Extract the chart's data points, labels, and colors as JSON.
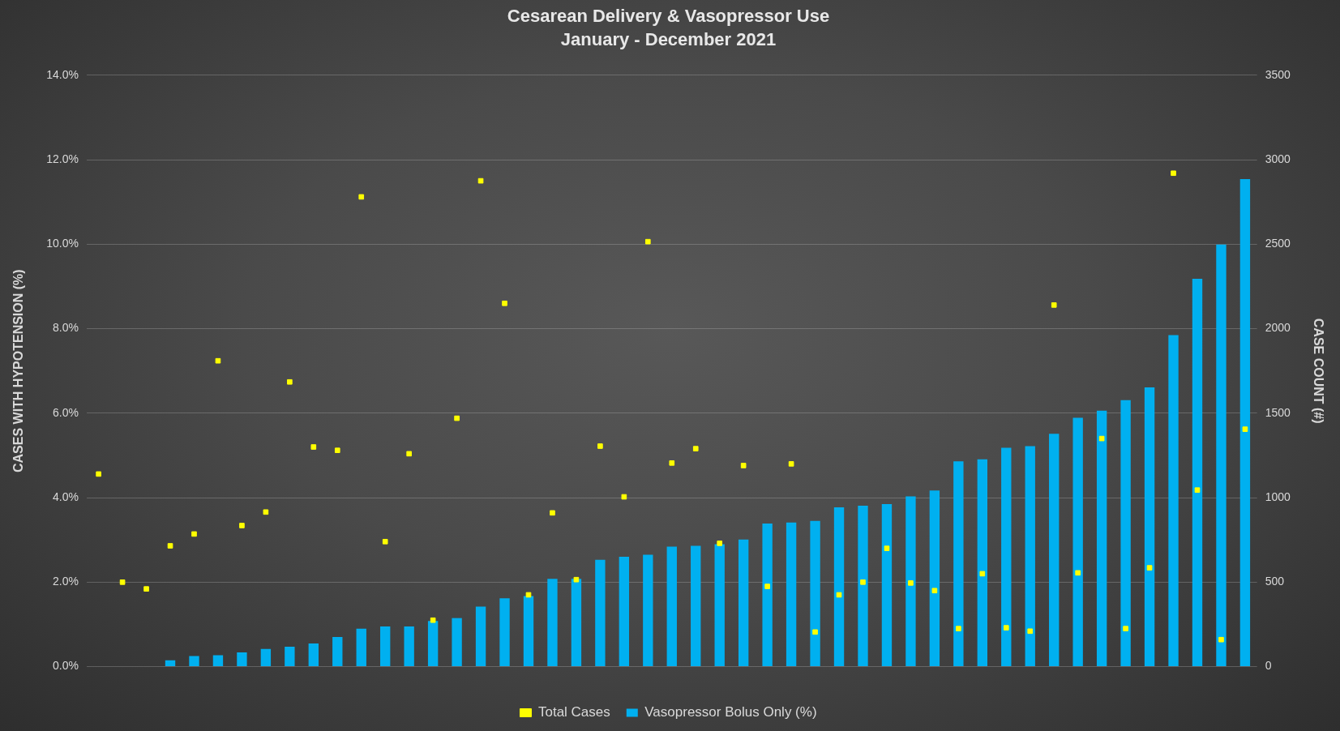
{
  "chart_data": {
    "type": "bar",
    "title": "Cesarean Delivery & Vasopressor Use",
    "subtitle": "January - December 2021",
    "ylabel": "CASES WITH HYPOTENSION (%)",
    "y2label": "CASE COUNT (#)",
    "categories": [
      null,
      null,
      null,
      null,
      null,
      null,
      null,
      null,
      null,
      null,
      null,
      null,
      null,
      null,
      null,
      null,
      null,
      null,
      null,
      null,
      null,
      null,
      null,
      null,
      null,
      null,
      null,
      null,
      null,
      null,
      null,
      null,
      null,
      null,
      null,
      null,
      null,
      null,
      null,
      null,
      null,
      null,
      null,
      null,
      null,
      null,
      null,
      null,
      null
    ],
    "series": [
      {
        "name": "Vasopressor Bolus Only (%)",
        "color": "#00b0f0",
        "values": [
          null,
          null,
          null,
          0.15,
          0.25,
          0.27,
          0.34,
          0.42,
          0.47,
          0.55,
          0.7,
          0.9,
          0.95,
          0.95,
          1.08,
          1.15,
          1.42,
          1.62,
          1.67,
          2.08,
          2.08,
          2.53,
          2.6,
          2.65,
          2.84,
          2.86,
          2.9,
          3.01,
          3.39,
          3.41,
          3.45,
          3.77,
          3.81,
          3.85,
          4.03,
          4.17,
          4.86,
          4.91,
          5.18,
          5.22,
          5.51,
          5.89,
          6.06,
          6.31,
          6.61,
          7.85,
          9.18,
          9.99,
          11.54
        ]
      },
      {
        "name": "Total Cases",
        "type": "scatter",
        "axis": "y2",
        "marker": "square",
        "color": "#ffff00",
        "values": [
          1140,
          500,
          460,
          715,
          785,
          1810,
          835,
          915,
          1685,
          1300,
          1280,
          2780,
          740,
          1260,
          275,
          1470,
          2875,
          2150,
          425,
          910,
          515,
          1305,
          1005,
          2515,
          1205,
          1290,
          730,
          1190,
          475,
          1200,
          205,
          425,
          500,
          700,
          495,
          450,
          225,
          550,
          230,
          210,
          2140,
          555,
          1350,
          225,
          585,
          2920,
          1045,
          160,
          1405
        ]
      }
    ],
    "ylim": [
      0,
      14
    ],
    "yticks": [
      {
        "value": 0,
        "label": "0.0%"
      },
      {
        "value": 2,
        "label": "2.0%"
      },
      {
        "value": 4,
        "label": "4.0%"
      },
      {
        "value": 6,
        "label": "6.0%"
      },
      {
        "value": 8,
        "label": "8.0%"
      },
      {
        "value": 10,
        "label": "10.0%"
      },
      {
        "value": 12,
        "label": "12.0%"
      },
      {
        "value": 14,
        "label": "14.0%"
      }
    ],
    "y2lim": [
      0,
      3500
    ],
    "y2ticks": [
      0,
      500,
      1000,
      1500,
      2000,
      2500,
      3000,
      3500
    ],
    "grid": "y",
    "legend": "bottom"
  }
}
